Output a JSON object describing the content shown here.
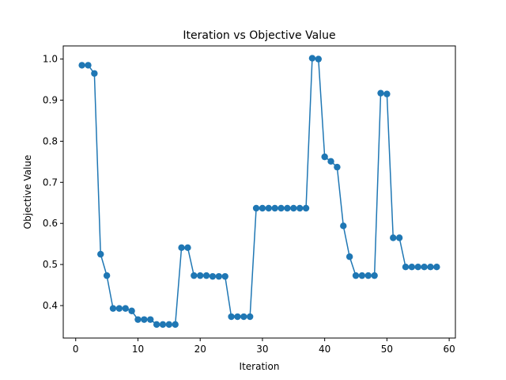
{
  "chart_data": {
    "type": "line",
    "title": "Iteration vs Objective Value",
    "xlabel": "Iteration",
    "ylabel": "Objective Value",
    "xlim": [
      -2,
      61
    ],
    "ylim": [
      0.321,
      1.032
    ],
    "xticks": [
      0,
      10,
      20,
      30,
      40,
      50,
      60
    ],
    "yticks": [
      0.4,
      0.5,
      0.6,
      0.7,
      0.8,
      0.9,
      1.0
    ],
    "xtick_labels": [
      "0",
      "10",
      "20",
      "30",
      "40",
      "50",
      "60"
    ],
    "ytick_labels": [
      "0.4",
      "0.5",
      "0.6",
      "0.7",
      "0.8",
      "0.9",
      "1.0"
    ],
    "grid": false,
    "marker": "circle",
    "color": "#1f77b4",
    "series": [
      {
        "x": [
          1,
          2,
          3,
          4,
          5,
          6,
          7,
          8,
          9,
          10,
          11,
          12,
          13,
          14,
          15,
          16,
          17,
          18,
          19,
          20,
          21,
          22,
          23,
          24,
          25,
          26,
          27,
          28,
          29,
          30,
          31,
          32,
          33,
          34,
          35,
          36,
          37,
          38,
          39,
          40,
          41,
          42,
          43,
          44,
          45,
          46,
          47,
          48,
          49,
          50,
          51,
          52,
          53,
          54,
          55,
          56,
          57,
          58
        ],
        "values": [
          0.985,
          0.985,
          0.965,
          0.525,
          0.473,
          0.393,
          0.393,
          0.393,
          0.387,
          0.366,
          0.366,
          0.366,
          0.354,
          0.354,
          0.354,
          0.354,
          0.541,
          0.541,
          0.473,
          0.473,
          0.473,
          0.471,
          0.471,
          0.471,
          0.373,
          0.373,
          0.373,
          0.373,
          0.637,
          0.637,
          0.637,
          0.637,
          0.637,
          0.637,
          0.637,
          0.637,
          0.637,
          1.002,
          1.0,
          0.762,
          0.751,
          0.737,
          0.594,
          0.519,
          0.473,
          0.473,
          0.473,
          0.473,
          0.917,
          0.915,
          0.565,
          0.565,
          0.494,
          0.494,
          0.494,
          0.494,
          0.494,
          0.494
        ]
      }
    ]
  }
}
